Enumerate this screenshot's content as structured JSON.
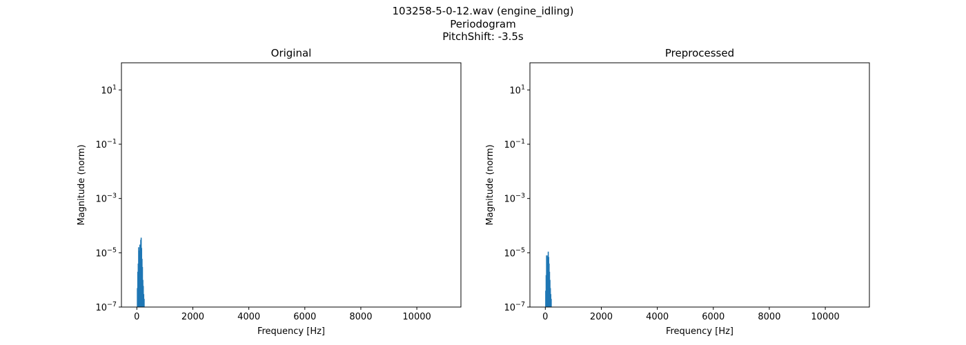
{
  "figure": {
    "title_lines": [
      "103258-5-0-12.wav (engine_idling)",
      "Periodogram",
      "PitchShift: -3.5s"
    ]
  },
  "chart_data": [
    {
      "type": "bar",
      "title": "Original",
      "xlabel": "Frequency [Hz]",
      "ylabel": "Magnitude (norm)",
      "xscale": "linear",
      "yscale": "log",
      "xlim": [
        -550,
        11575
      ],
      "ylim_log10": [
        -7,
        2
      ],
      "xticks": [
        0,
        2000,
        4000,
        6000,
        8000,
        10000
      ],
      "yticks": [
        {
          "exp": 1,
          "base": "10",
          "sup": "1"
        },
        {
          "exp": -1,
          "base": "10",
          "sup": "−1"
        },
        {
          "exp": -3,
          "base": "10",
          "sup": "−3"
        },
        {
          "exp": -5,
          "base": "10",
          "sup": "−5"
        },
        {
          "exp": -7,
          "base": "10",
          "sup": "−7"
        }
      ],
      "grid": false,
      "color": "#1f77b4",
      "series": [
        {
          "x": [
            20,
            35,
            50,
            65,
            80,
            95,
            110,
            125,
            140,
            155,
            170,
            185,
            200,
            215,
            230,
            245,
            260
          ],
          "y": [
            5e-07,
            2e-06,
            4e-06,
            1.6e-05,
            1.2e-05,
            8e-06,
            2e-05,
            1.5e-05,
            3e-05,
            3.6e-05,
            1.5e-05,
            6e-06,
            3e-06,
            1e-06,
            6e-07,
            3e-07,
            2e-07
          ]
        }
      ]
    },
    {
      "type": "bar",
      "title": "Preprocessed",
      "xlabel": "Frequency [Hz]",
      "ylabel": "Magnitude (norm)",
      "xscale": "linear",
      "yscale": "log",
      "xlim": [
        -550,
        11575
      ],
      "ylim_log10": [
        -7,
        2
      ],
      "xticks": [
        0,
        2000,
        4000,
        6000,
        8000,
        10000
      ],
      "yticks": [
        {
          "exp": 1,
          "base": "10",
          "sup": "1"
        },
        {
          "exp": -1,
          "base": "10",
          "sup": "−1"
        },
        {
          "exp": -3,
          "base": "10",
          "sup": "−3"
        },
        {
          "exp": -5,
          "base": "10",
          "sup": "−5"
        },
        {
          "exp": -7,
          "base": "10",
          "sup": "−7"
        }
      ],
      "grid": false,
      "color": "#1f77b4",
      "series": [
        {
          "x": [
            15,
            30,
            45,
            60,
            75,
            90,
            105,
            120,
            135,
            150,
            165,
            180,
            195,
            210
          ],
          "y": [
            4e-07,
            1.5e-06,
            8e-06,
            7e-06,
            6e-06,
            8e-06,
            1.1e-05,
            7e-06,
            4e-06,
            2e-06,
            1e-06,
            5e-07,
            3e-07,
            2e-07
          ]
        }
      ]
    }
  ]
}
